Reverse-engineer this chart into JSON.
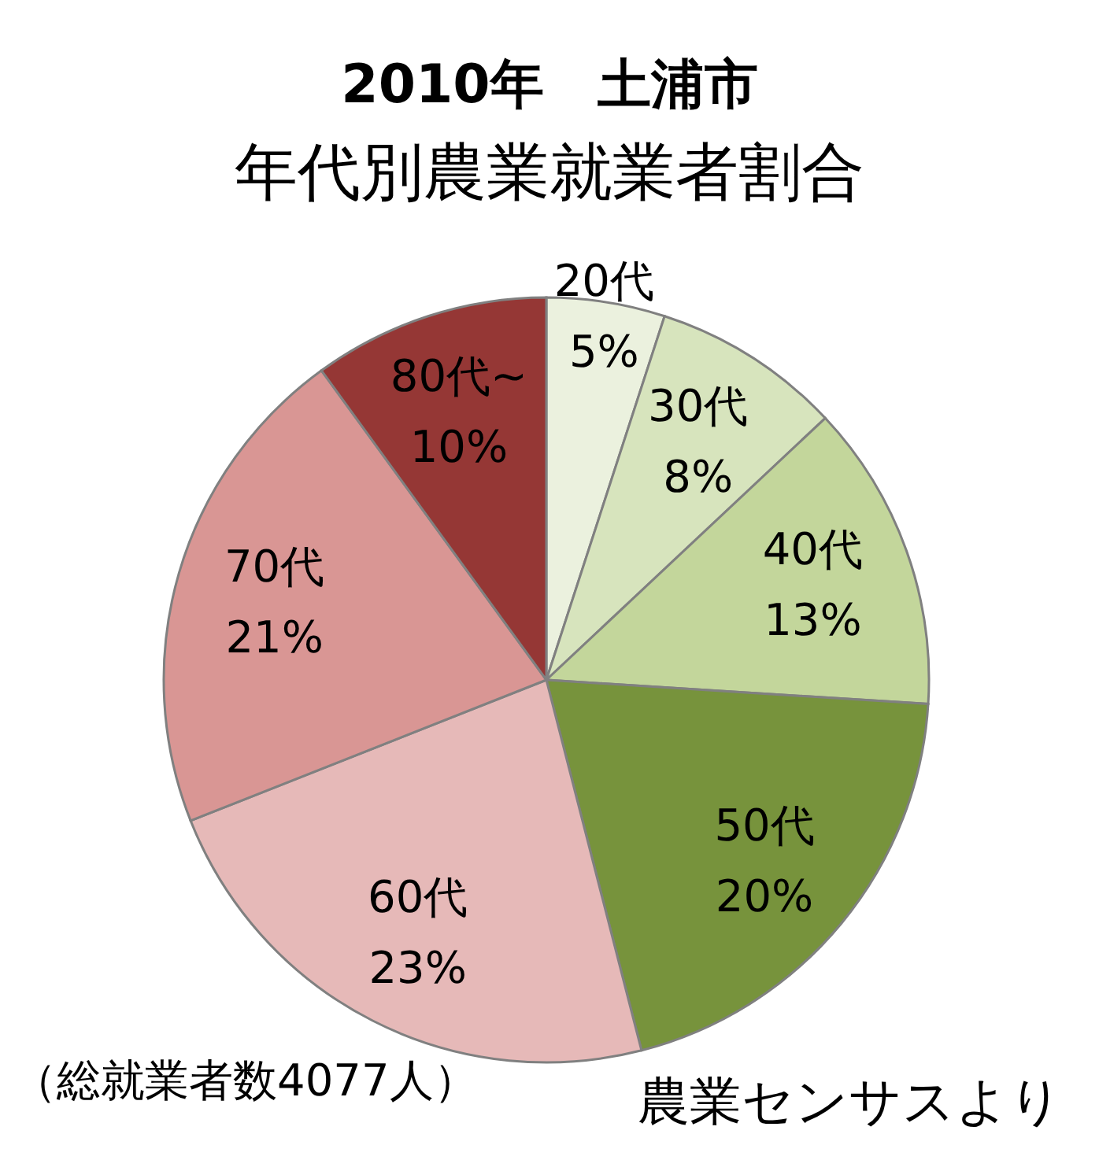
{
  "chart_data": {
    "type": "pie",
    "title": "2010年　土浦市",
    "subtitle": "年代別農業就業者割合",
    "categories": [
      "20代",
      "30代",
      "40代",
      "50代",
      "60代",
      "70代",
      "80代~"
    ],
    "values": [
      5,
      8,
      13,
      20,
      23,
      21,
      10
    ],
    "colors": [
      "#ebf1de",
      "#d7e4bd",
      "#c3d69b",
      "#77933c",
      "#e6b9b8",
      "#d99694",
      "#953735"
    ],
    "value_labels": [
      "5%",
      "8%",
      "13%",
      "20%",
      "23%",
      "21%",
      "10%"
    ],
    "annotations": [
      "（総就業者数4077人）",
      "農業センサスより"
    ]
  }
}
